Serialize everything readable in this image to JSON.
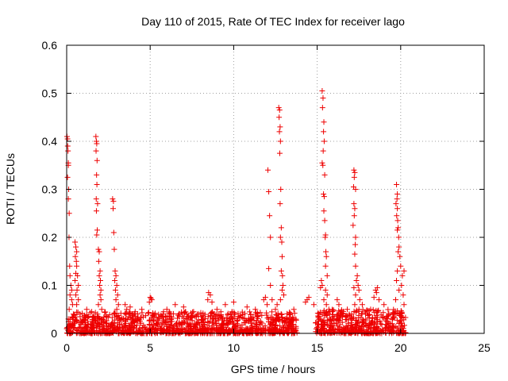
{
  "chart_data": {
    "type": "scatter",
    "title": "Day 110 of 2015, Rate Of TEC Index for receiver lago",
    "xlabel": "GPS time / hours",
    "ylabel": "ROTI / TECUs",
    "xlim": [
      0,
      25
    ],
    "ylim": [
      0,
      0.6
    ],
    "xticks": [
      0,
      5,
      10,
      15,
      20,
      25
    ],
    "xtick_labels": [
      "0",
      "5",
      "10",
      "15",
      "20",
      "25"
    ],
    "yticks": [
      0,
      0.1,
      0.2,
      0.3,
      0.4,
      0.5,
      0.6
    ],
    "ytick_labels": [
      "0",
      "0.1",
      "0.2",
      "0.3",
      "0.4",
      "0.5",
      "0.6"
    ],
    "grid": true,
    "marker": "+",
    "marker_color": "#ee0000",
    "series": [
      {
        "name": "ROTI",
        "points": [
          [
            0.02,
            0.41
          ],
          [
            0.05,
            0.405
          ],
          [
            0.06,
            0.39
          ],
          [
            0.08,
            0.38
          ],
          [
            0.1,
            0.355
          ],
          [
            0.1,
            0.35
          ],
          [
            0.05,
            0.325
          ],
          [
            0.12,
            0.3
          ],
          [
            0.1,
            0.28
          ],
          [
            0.15,
            0.25
          ],
          [
            0.14,
            0.2
          ],
          [
            0.18,
            0.14
          ],
          [
            0.2,
            0.12
          ],
          [
            0.25,
            0.1
          ],
          [
            0.3,
            0.09
          ],
          [
            0.2,
            0.08
          ],
          [
            0.3,
            0.07
          ],
          [
            0.35,
            0.06
          ],
          [
            0.15,
            0.05
          ],
          [
            0.4,
            0.04
          ],
          [
            0.1,
            0.03
          ],
          [
            0.2,
            0.02
          ],
          [
            0.5,
            0.19
          ],
          [
            0.55,
            0.18
          ],
          [
            0.6,
            0.17
          ],
          [
            0.52,
            0.16
          ],
          [
            0.58,
            0.15
          ],
          [
            0.6,
            0.14
          ],
          [
            0.55,
            0.125
          ],
          [
            0.65,
            0.12
          ],
          [
            0.5,
            0.11
          ],
          [
            0.7,
            0.1
          ],
          [
            0.62,
            0.09
          ],
          [
            0.55,
            0.08
          ],
          [
            0.7,
            0.07
          ],
          [
            0.6,
            0.06
          ],
          [
            1.75,
            0.41
          ],
          [
            1.78,
            0.4
          ],
          [
            1.8,
            0.395
          ],
          [
            1.76,
            0.38
          ],
          [
            1.82,
            0.36
          ],
          [
            1.79,
            0.33
          ],
          [
            1.81,
            0.31
          ],
          [
            1.77,
            0.28
          ],
          [
            1.85,
            0.27
          ],
          [
            1.78,
            0.255
          ],
          [
            1.83,
            0.215
          ],
          [
            1.8,
            0.205
          ],
          [
            1.9,
            0.175
          ],
          [
            1.95,
            0.17
          ],
          [
            1.92,
            0.15
          ],
          [
            2.0,
            0.13
          ],
          [
            1.95,
            0.12
          ],
          [
            2.02,
            0.11
          ],
          [
            1.98,
            0.1
          ],
          [
            2.05,
            0.09
          ],
          [
            2.0,
            0.08
          ],
          [
            2.05,
            0.07
          ],
          [
            1.9,
            0.06
          ],
          [
            2.1,
            0.05
          ],
          [
            1.85,
            0.04
          ],
          [
            2.75,
            0.28
          ],
          [
            2.8,
            0.275
          ],
          [
            2.78,
            0.26
          ],
          [
            2.82,
            0.21
          ],
          [
            2.85,
            0.175
          ],
          [
            2.9,
            0.13
          ],
          [
            2.95,
            0.12
          ],
          [
            2.88,
            0.11
          ],
          [
            3.0,
            0.1
          ],
          [
            2.92,
            0.09
          ],
          [
            3.05,
            0.08
          ],
          [
            2.95,
            0.07
          ],
          [
            3.1,
            0.06
          ],
          [
            3.0,
            0.05
          ],
          [
            12.05,
            0.34
          ],
          [
            12.1,
            0.295
          ],
          [
            12.15,
            0.245
          ],
          [
            12.2,
            0.2
          ],
          [
            12.1,
            0.135
          ],
          [
            12.2,
            0.1
          ],
          [
            12.3,
            0.07
          ],
          [
            12.7,
            0.47
          ],
          [
            12.75,
            0.465
          ],
          [
            12.72,
            0.45
          ],
          [
            12.78,
            0.43
          ],
          [
            12.74,
            0.42
          ],
          [
            12.8,
            0.4
          ],
          [
            12.76,
            0.375
          ],
          [
            12.82,
            0.3
          ],
          [
            12.78,
            0.27
          ],
          [
            12.85,
            0.22
          ],
          [
            12.8,
            0.2
          ],
          [
            12.88,
            0.19
          ],
          [
            12.9,
            0.16
          ],
          [
            12.85,
            0.13
          ],
          [
            12.92,
            0.12
          ],
          [
            12.95,
            0.1
          ],
          [
            12.9,
            0.09
          ],
          [
            13.0,
            0.08
          ],
          [
            12.8,
            0.07
          ],
          [
            12.6,
            0.06
          ],
          [
            12.5,
            0.05
          ],
          [
            15.3,
            0.505
          ],
          [
            15.35,
            0.49
          ],
          [
            15.32,
            0.47
          ],
          [
            15.4,
            0.44
          ],
          [
            15.38,
            0.42
          ],
          [
            15.42,
            0.4
          ],
          [
            15.36,
            0.38
          ],
          [
            15.3,
            0.355
          ],
          [
            15.34,
            0.35
          ],
          [
            15.45,
            0.33
          ],
          [
            15.38,
            0.29
          ],
          [
            15.42,
            0.285
          ],
          [
            15.4,
            0.255
          ],
          [
            15.45,
            0.235
          ],
          [
            15.5,
            0.205
          ],
          [
            15.48,
            0.2
          ],
          [
            15.52,
            0.17
          ],
          [
            15.55,
            0.16
          ],
          [
            15.5,
            0.14
          ],
          [
            15.6,
            0.12
          ],
          [
            15.25,
            0.11
          ],
          [
            15.3,
            0.1
          ],
          [
            15.2,
            0.095
          ],
          [
            15.5,
            0.09
          ],
          [
            15.6,
            0.08
          ],
          [
            15.4,
            0.07
          ],
          [
            15.55,
            0.06
          ],
          [
            15.7,
            0.05
          ],
          [
            17.2,
            0.34
          ],
          [
            17.25,
            0.335
          ],
          [
            17.22,
            0.325
          ],
          [
            17.18,
            0.305
          ],
          [
            17.3,
            0.3
          ],
          [
            17.2,
            0.27
          ],
          [
            17.25,
            0.26
          ],
          [
            17.22,
            0.245
          ],
          [
            17.15,
            0.225
          ],
          [
            17.3,
            0.2
          ],
          [
            17.28,
            0.185
          ],
          [
            17.25,
            0.165
          ],
          [
            17.3,
            0.14
          ],
          [
            17.4,
            0.12
          ],
          [
            17.35,
            0.11
          ],
          [
            17.45,
            0.1
          ],
          [
            17.2,
            0.095
          ],
          [
            17.5,
            0.09
          ],
          [
            17.3,
            0.08
          ],
          [
            17.55,
            0.07
          ],
          [
            17.25,
            0.06
          ],
          [
            17.5,
            0.05
          ],
          [
            19.75,
            0.31
          ],
          [
            19.8,
            0.29
          ],
          [
            19.78,
            0.28
          ],
          [
            19.72,
            0.27
          ],
          [
            19.8,
            0.26
          ],
          [
            19.76,
            0.245
          ],
          [
            19.82,
            0.235
          ],
          [
            19.85,
            0.22
          ],
          [
            19.8,
            0.215
          ],
          [
            19.88,
            0.2
          ],
          [
            19.9,
            0.18
          ],
          [
            19.85,
            0.17
          ],
          [
            19.95,
            0.16
          ],
          [
            20.0,
            0.14
          ],
          [
            19.8,
            0.13
          ],
          [
            20.1,
            0.12
          ],
          [
            20.2,
            0.13
          ],
          [
            19.75,
            0.11
          ],
          [
            20.05,
            0.1
          ],
          [
            19.9,
            0.09
          ],
          [
            20.15,
            0.08
          ],
          [
            19.7,
            0.07
          ],
          [
            20.2,
            0.06
          ],
          [
            5.0,
            0.075
          ],
          [
            5.05,
            0.073
          ],
          [
            5.1,
            0.07
          ],
          [
            4.95,
            0.065
          ],
          [
            8.5,
            0.085
          ],
          [
            8.6,
            0.08
          ],
          [
            8.45,
            0.07
          ],
          [
            8.7,
            0.065
          ],
          [
            6.5,
            0.06
          ],
          [
            7.0,
            0.055
          ],
          [
            9.5,
            0.06
          ],
          [
            10.0,
            0.065
          ],
          [
            11.8,
            0.07
          ],
          [
            11.9,
            0.075
          ],
          [
            12.0,
            0.06
          ],
          [
            14.4,
            0.07
          ],
          [
            14.5,
            0.075
          ],
          [
            14.3,
            0.065
          ],
          [
            16.2,
            0.07
          ],
          [
            16.3,
            0.06
          ],
          [
            18.5,
            0.09
          ],
          [
            18.6,
            0.095
          ],
          [
            18.55,
            0.085
          ],
          [
            18.7,
            0.07
          ],
          [
            18.4,
            0.075
          ],
          [
            19.0,
            0.06
          ],
          [
            13.6,
            0.05
          ],
          [
            14.8,
            0.06
          ],
          [
            16.8,
            0.05
          ],
          [
            17.7,
            0.06
          ],
          [
            18.2,
            0.05
          ],
          [
            3.6,
            0.05
          ],
          [
            4.1,
            0.045
          ],
          [
            1.2,
            0.05
          ],
          [
            1.5,
            0.045
          ],
          [
            6.0,
            0.05
          ],
          [
            7.6,
            0.045
          ],
          [
            9.0,
            0.05
          ],
          [
            10.8,
            0.055
          ],
          [
            11.3,
            0.05
          ],
          [
            3.5,
            0.06
          ],
          [
            3.8,
            0.055
          ],
          [
            4.5,
            0.05
          ],
          [
            5.8,
            0.045
          ],
          [
            9.9,
            0.045
          ]
        ],
        "dense_band": {
          "note": "dense low-value background points spanning most of the day",
          "segments": [
            {
              "x_range": [
                0.0,
                13.8
              ],
              "y_range": [
                0.0,
                0.045
              ]
            },
            {
              "x_range": [
                14.9,
                20.3
              ],
              "y_range": [
                0.0,
                0.05
              ]
            }
          ]
        }
      }
    ]
  }
}
